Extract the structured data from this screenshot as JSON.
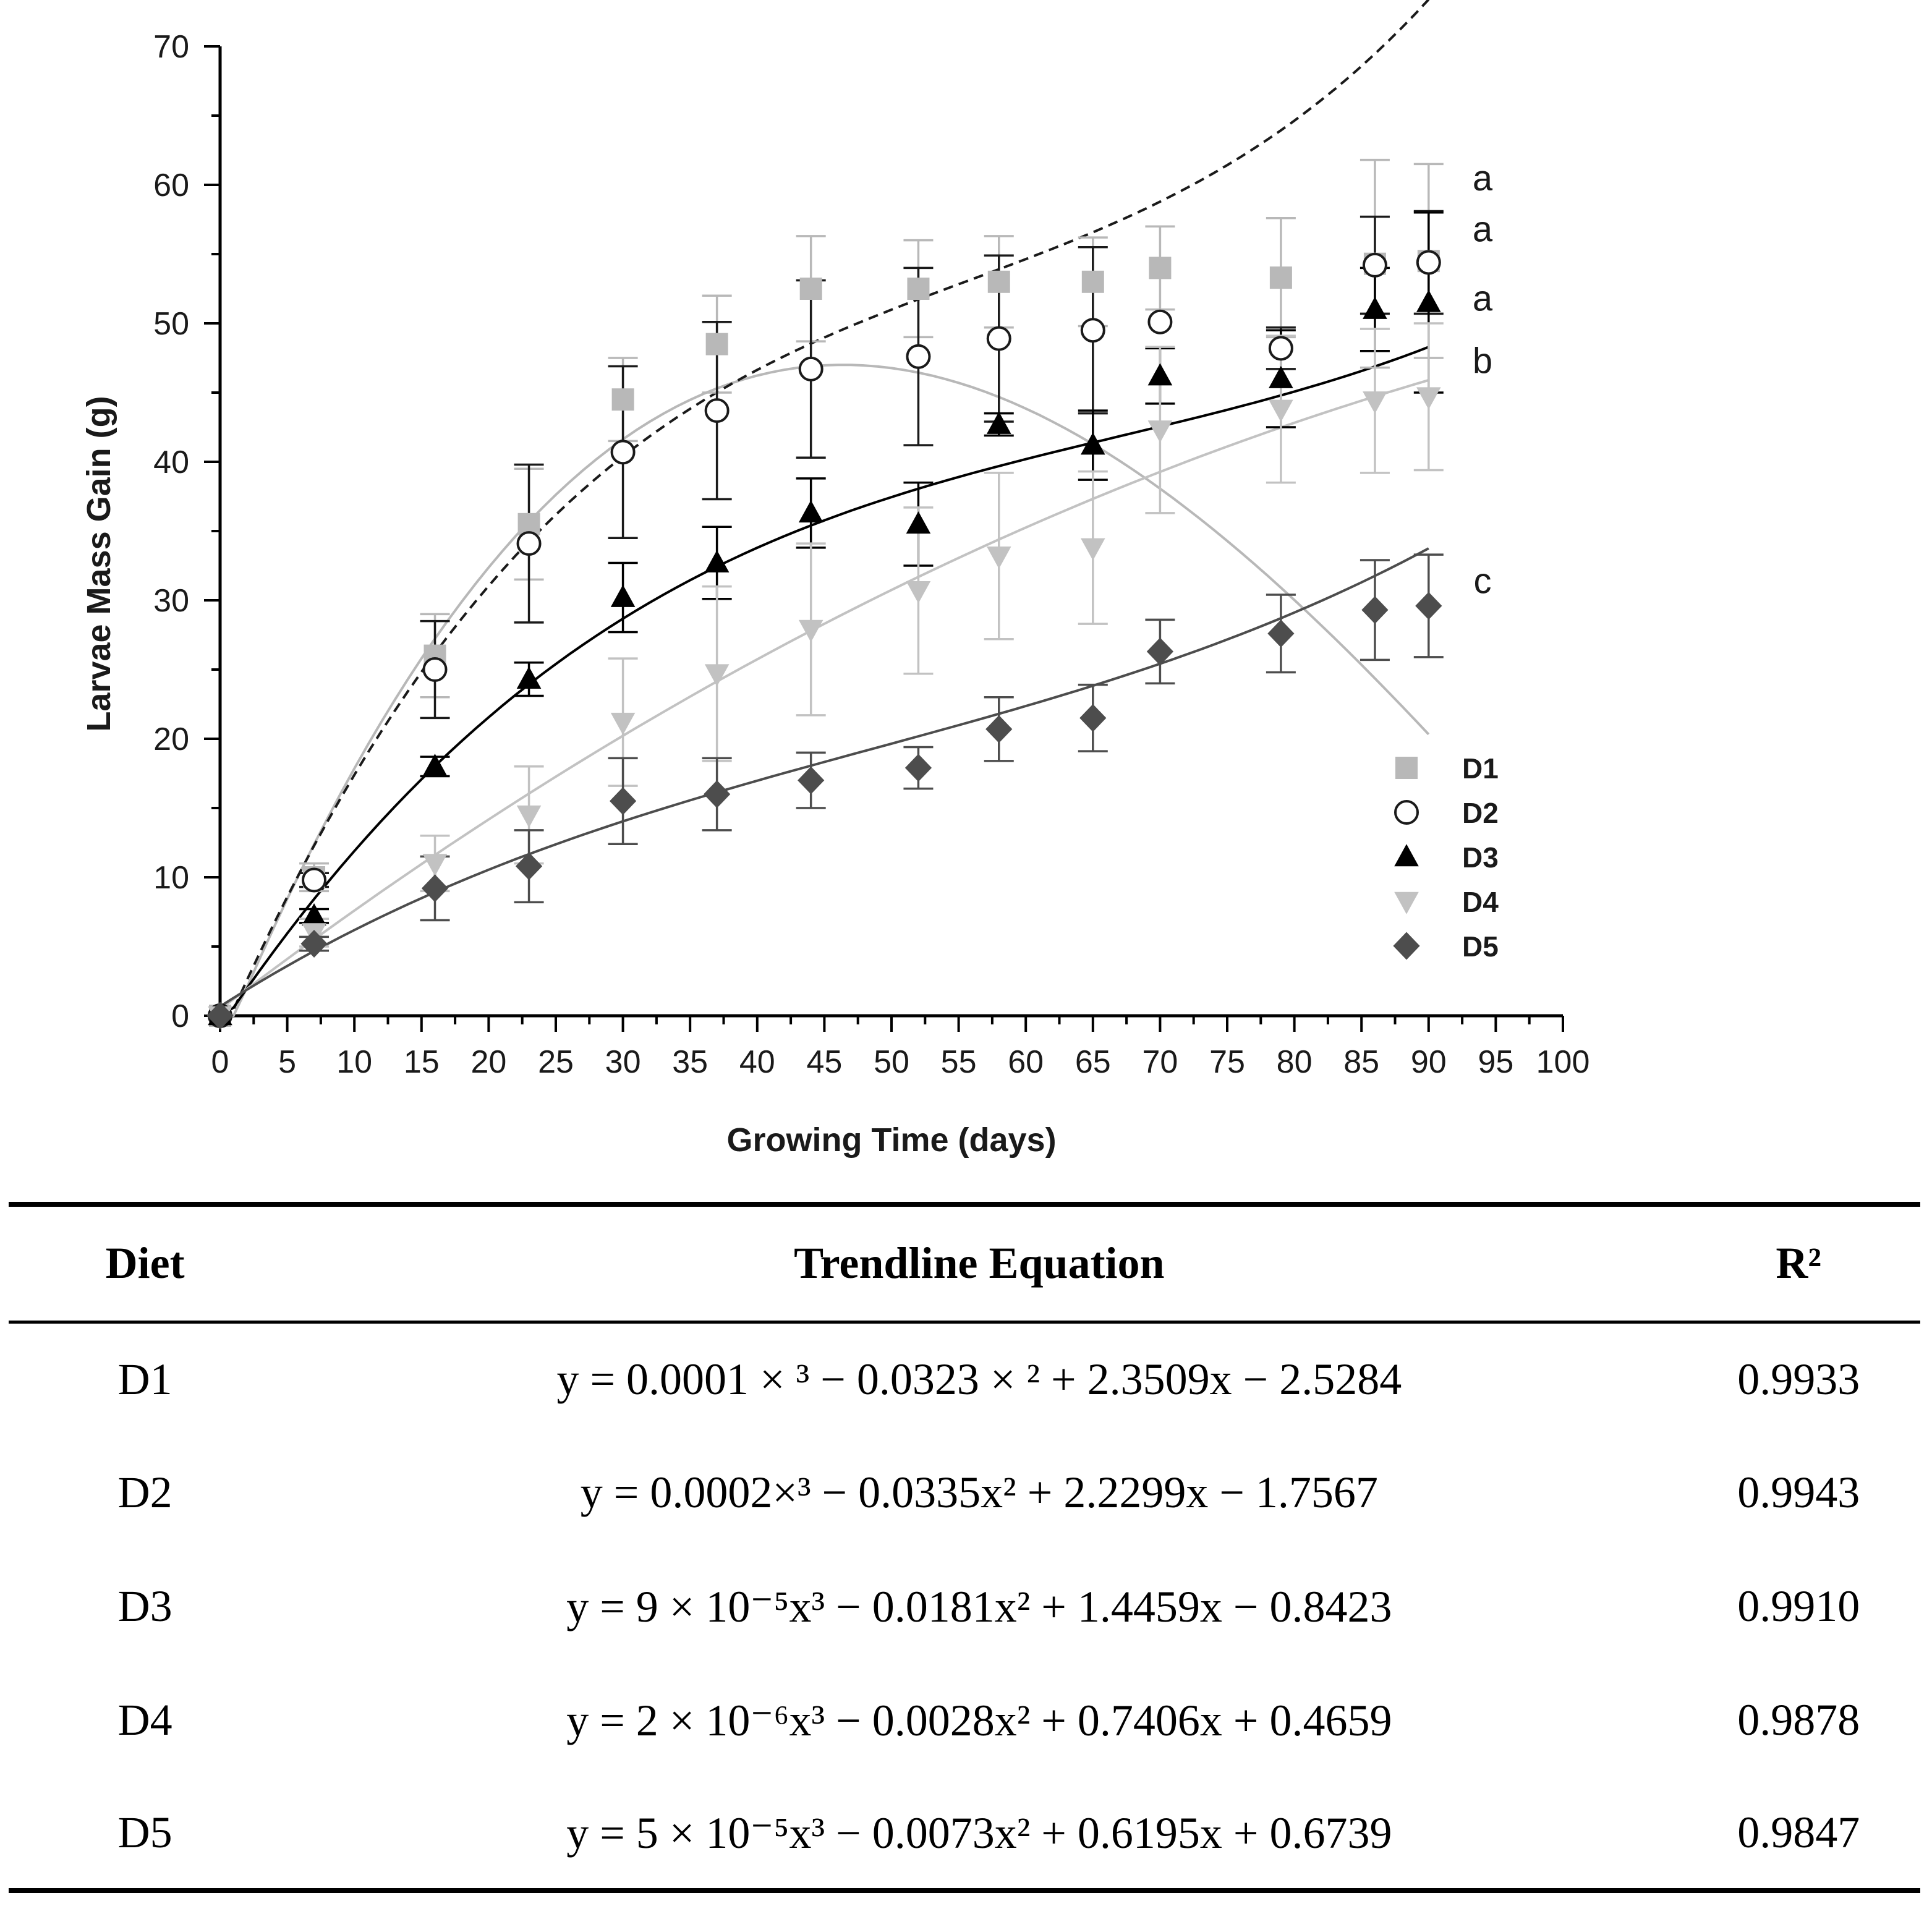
{
  "chart_data": {
    "type": "scatter",
    "xlabel": "Growing Time (days)",
    "ylabel": "Larvae Mass Gain (g)",
    "xlim": [
      0,
      100
    ],
    "ylim": [
      0,
      70
    ],
    "x_ticks": [
      0,
      5,
      10,
      15,
      20,
      25,
      30,
      35,
      40,
      45,
      50,
      55,
      60,
      65,
      70,
      75,
      80,
      85,
      90,
      95,
      100
    ],
    "y_ticks": [
      0,
      10,
      20,
      30,
      40,
      50,
      60,
      70
    ],
    "x_tick_labels": [
      "0",
      "5",
      "10",
      "15",
      "20",
      "25",
      "30",
      "35",
      "40",
      "45",
      "50",
      "55",
      "60",
      "65",
      "70",
      "75",
      "80",
      "85",
      "90",
      "95",
      "100"
    ],
    "y_tick_labels": [
      "0",
      "10",
      "20",
      "30",
      "40",
      "50",
      "60",
      "70"
    ],
    "legend_position": "bottom-right",
    "series": [
      {
        "name": "D1",
        "marker": "square",
        "color": "#b8b8b8",
        "line_style": "solid",
        "x": [
          0,
          7,
          16,
          23,
          30,
          37,
          44,
          52,
          58,
          65,
          70,
          79,
          86,
          90
        ],
        "y": [
          0,
          10,
          26,
          35.5,
          44.5,
          48.5,
          52.5,
          52.5,
          53,
          53,
          54,
          53.3,
          54.3,
          54.5
        ],
        "err": [
          0,
          1,
          3,
          4,
          3,
          3.5,
          3.8,
          3.5,
          3.3,
          3.2,
          3,
          4.3,
          7.5,
          7
        ],
        "sig": "a",
        "trendline": [
          0.0001,
          -0.0323,
          2.3509,
          -2.5284
        ]
      },
      {
        "name": "D2",
        "marker": "circle-open",
        "color": "#1a1a1a",
        "line_style": "dashed",
        "x": [
          0,
          7,
          16,
          23,
          30,
          37,
          44,
          52,
          58,
          65,
          70,
          79,
          86,
          90
        ],
        "y": [
          0,
          9.8,
          25,
          34.1,
          40.7,
          43.7,
          46.7,
          47.6,
          48.9,
          49.5,
          50.1,
          48.2,
          54.2,
          54.4
        ],
        "err": [
          0,
          0.5,
          3.5,
          5.7,
          6.2,
          6.4,
          6.4,
          6.4,
          6,
          6,
          0,
          1.5,
          3.5,
          3.7
        ],
        "sig": "a",
        "trendline": [
          0.0002,
          -0.0335,
          2.2299,
          -1.7567
        ]
      },
      {
        "name": "D3",
        "marker": "triangle-up",
        "color": "#000000",
        "line_style": "solid",
        "x": [
          0,
          7,
          16,
          23,
          30,
          37,
          44,
          52,
          58,
          65,
          70,
          79,
          86,
          90
        ],
        "y": [
          0,
          7.2,
          18,
          24.3,
          30.2,
          32.7,
          36.3,
          35.5,
          42.7,
          41.2,
          46.2,
          46,
          51,
          51.5
        ],
        "err": [
          0,
          0.5,
          0.7,
          1.2,
          2.5,
          2.6,
          2.5,
          3,
          0.8,
          2.5,
          2,
          3.5,
          3,
          6.5
        ],
        "sig": "a",
        "trendline": [
          9e-05,
          -0.0181,
          1.4459,
          -0.8423
        ]
      },
      {
        "name": "D4",
        "marker": "triangle-down",
        "color": "#c2c2c2",
        "line_style": "solid",
        "x": [
          0,
          7,
          16,
          23,
          30,
          37,
          44,
          52,
          58,
          65,
          70,
          79,
          86,
          90
        ],
        "y": [
          0,
          6,
          11,
          14.5,
          21.2,
          24.7,
          27.9,
          30.7,
          33.2,
          33.8,
          42.3,
          43.8,
          44.4,
          44.7
        ],
        "err": [
          0,
          1,
          2,
          3.5,
          4.6,
          6.3,
          6.2,
          6,
          6,
          5.5,
          6,
          5.3,
          5.2,
          5.3
        ],
        "sig": "b",
        "trendline": [
          2e-06,
          -0.0028,
          0.7406,
          0.4659
        ]
      },
      {
        "name": "D5",
        "marker": "diamond",
        "color": "#4d4d4d",
        "line_style": "solid",
        "x": [
          0,
          7,
          16,
          23,
          30,
          37,
          44,
          52,
          58,
          65,
          70,
          79,
          86,
          90
        ],
        "y": [
          0,
          5.2,
          9.2,
          10.8,
          15.5,
          16,
          17,
          17.9,
          20.7,
          21.5,
          26.3,
          27.6,
          29.3,
          29.6
        ],
        "err": [
          0,
          0.5,
          2.3,
          2.6,
          3.1,
          2.6,
          2,
          1.5,
          2.3,
          2.4,
          2.3,
          2.8,
          3.6,
          3.7
        ],
        "sig": "c",
        "trendline": [
          5e-05,
          -0.0073,
          0.6195,
          0.6739
        ]
      }
    ]
  },
  "table": {
    "headers": {
      "diet": "Diet",
      "equation": "Trendline Equation",
      "r2": "R²"
    },
    "rows": [
      {
        "diet": "D1",
        "equation": "y = 0.0001 × ³ − 0.0323 × ² + 2.3509x − 2.5284",
        "r2": "0.9933"
      },
      {
        "diet": "D2",
        "equation": "y = 0.0002×³ − 0.0335x² + 2.2299x − 1.7567",
        "r2": "0.9943"
      },
      {
        "diet": "D3",
        "equation": "y = 9 × 10⁻⁵x³ − 0.0181x² + 1.4459x − 0.8423",
        "r2": "0.9910"
      },
      {
        "diet": "D4",
        "equation": "y = 2 × 10⁻⁶x³ − 0.0028x² + 0.7406x + 0.4659",
        "r2": "0.9878"
      },
      {
        "diet": "D5",
        "equation": "y = 5 × 10⁻⁵x³ − 0.0073x² + 0.6195x + 0.6739",
        "r2": "0.9847"
      }
    ]
  }
}
